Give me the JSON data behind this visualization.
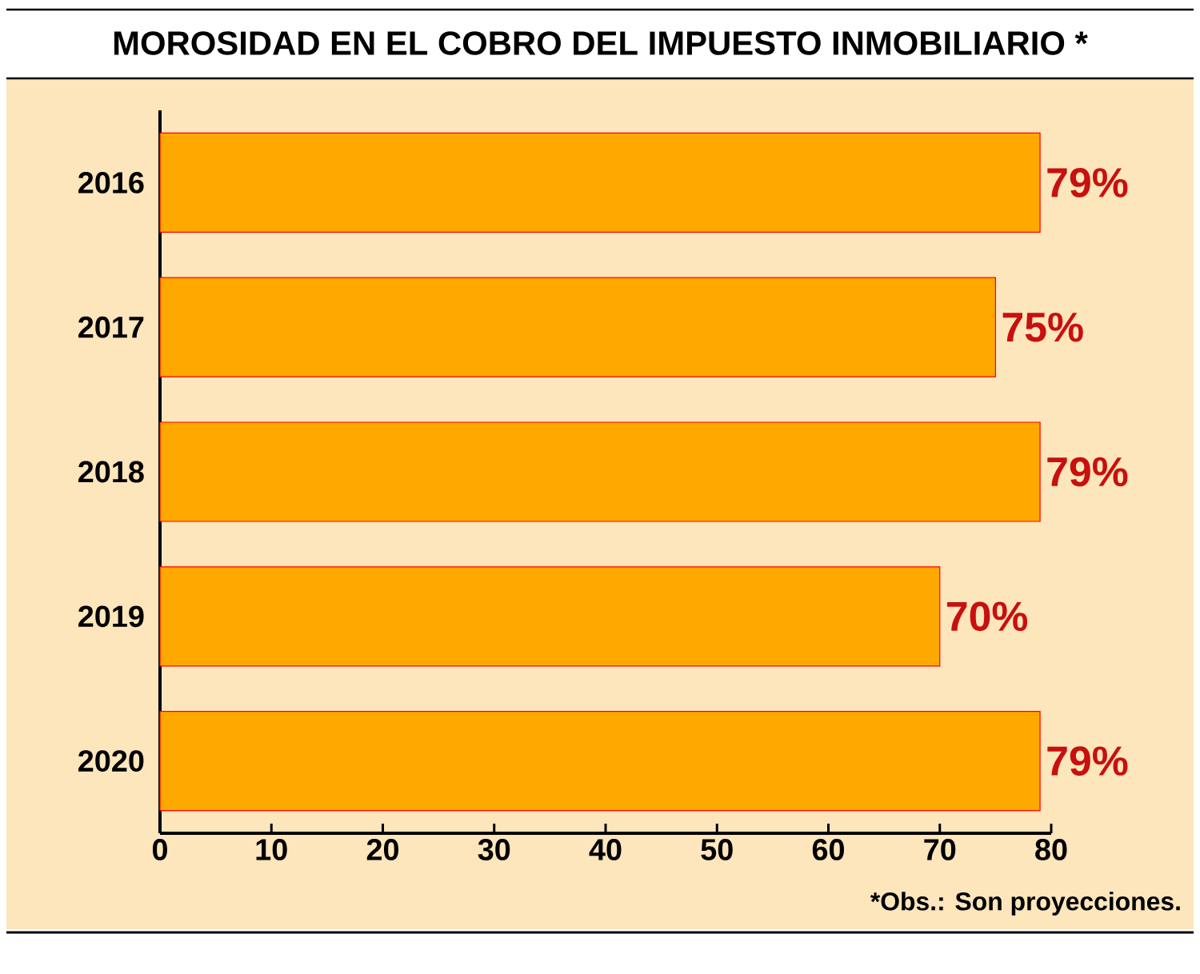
{
  "chart_data": {
    "type": "bar",
    "orientation": "horizontal",
    "title": "MOROSIDAD EN EL COBRO DEL IMPUESTO INMOBILIARIO *",
    "categories": [
      "2016",
      "2017",
      "2018",
      "2019",
      "2020"
    ],
    "values": [
      79,
      75,
      79,
      70,
      79
    ],
    "value_labels": [
      "79%",
      "75%",
      "79%",
      "70%",
      "79%"
    ],
    "color": "#ffa800",
    "xlim": [
      0,
      80
    ],
    "xticks": [
      0,
      10,
      20,
      30,
      40,
      50,
      60,
      70,
      80
    ],
    "annotations": [
      "*Obs.: Son proyecciones."
    ]
  }
}
